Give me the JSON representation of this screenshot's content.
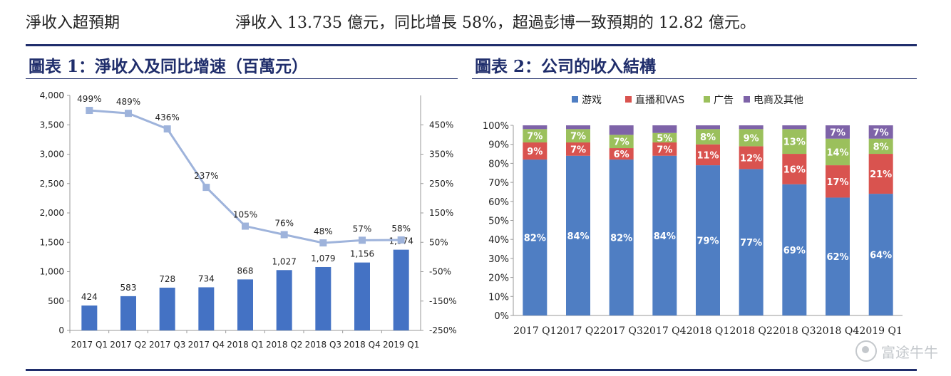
{
  "header": {
    "left": "淨收入超預期",
    "right": "淨收入 13.735 億元，同比增長 58%，超過彭博一致預期的 12.82 億元。"
  },
  "chart1": {
    "title": "圖表 1：淨收入及同比增速（百萬元）"
  },
  "chart2": {
    "title": "圖表 2：公司的收入結構"
  },
  "watermark": {
    "text": "富途牛牛",
    "icon": "futu-logo-icon"
  },
  "colors": {
    "bar": "#4472c4",
    "line": "#9eb3db",
    "game": "#4f7ec3",
    "live": "#d9534f",
    "ads": "#9bc05c",
    "ecom": "#7e63a8",
    "navy": "#1f2d6b"
  },
  "chart_data": [
    {
      "type": "bar",
      "categories": [
        "2017 Q1",
        "2017 Q2",
        "2017 Q3",
        "2017 Q4",
        "2018 Q1",
        "2018 Q2",
        "2018 Q3",
        "2018 Q4",
        "2019 Q1"
      ],
      "series": [
        {
          "values": [
            424,
            583,
            728,
            734,
            868,
            1027,
            1079,
            1156,
            1374
          ],
          "labels": [
            "424",
            "583",
            "728",
            "734",
            "868",
            "1,027",
            "1,079",
            "1,156",
            "1,374"
          ],
          "axis": "left",
          "kind": "bar"
        },
        {
          "values": [
            499,
            489,
            436,
            237,
            105,
            76,
            48,
            57,
            58
          ],
          "labels": [
            "499%",
            "489%",
            "436%",
            "237%",
            "105%",
            "76%",
            "48%",
            "57%",
            "58%"
          ],
          "axis": "right",
          "kind": "line"
        }
      ],
      "ylim": [
        0,
        4000
      ],
      "yticks": [
        "0",
        "500",
        "1,000",
        "1,500",
        "2,000",
        "2,500",
        "3,000",
        "3,500",
        "4,000"
      ],
      "y2lim": [
        -250,
        550
      ],
      "y2ticks": [
        "-250%",
        "-150%",
        "-50%",
        "50%",
        "150%",
        "250%",
        "350%",
        "450%"
      ],
      "grid": false
    },
    {
      "type": "bar",
      "stacked": true,
      "categories": [
        "2017 Q1",
        "2017 Q2",
        "2017 Q3",
        "2017 Q4",
        "2018 Q1",
        "2018 Q2",
        "2018 Q3",
        "2018 Q4",
        "2019 Q1"
      ],
      "series": [
        {
          "name": "游戏",
          "values": [
            82,
            84,
            82,
            84,
            79,
            77,
            69,
            62,
            64
          ]
        },
        {
          "name": "直播和VAS",
          "values": [
            9,
            7,
            6,
            7,
            11,
            12,
            16,
            17,
            21
          ]
        },
        {
          "name": "广告",
          "values": [
            7,
            7,
            7,
            5,
            8,
            9,
            13,
            14,
            8
          ]
        },
        {
          "name": "电商及其他",
          "values": [
            2,
            2,
            5,
            4,
            2,
            2,
            2,
            7,
            7
          ]
        }
      ],
      "segment_labels": [
        [
          "82%",
          "84%",
          "82%",
          "84%",
          "79%",
          "77%",
          "69%",
          "62%",
          "64%"
        ],
        [
          "9%",
          "7%",
          "6%",
          "7%",
          "11%",
          "12%",
          "16%",
          "17%",
          "21%"
        ],
        [
          "7%",
          "7%",
          "7%",
          "5%",
          "8%",
          "9%",
          "13%",
          "14%",
          "8%"
        ],
        [
          "",
          "",
          "",
          "",
          "",
          "",
          "",
          "7%",
          "7%"
        ]
      ],
      "ylim": [
        0,
        100
      ],
      "yticks": [
        "0%",
        "10%",
        "20%",
        "30%",
        "40%",
        "50%",
        "60%",
        "70%",
        "80%",
        "90%",
        "100%"
      ],
      "legend": "top",
      "grid": false
    }
  ]
}
